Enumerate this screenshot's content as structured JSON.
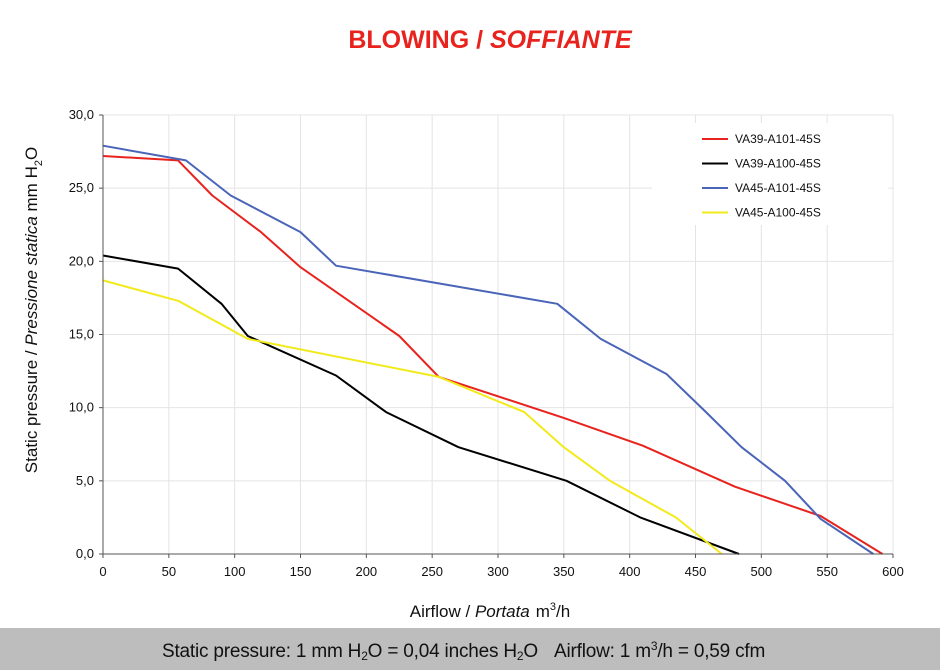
{
  "chart_data": {
    "type": "line",
    "title_main": "BLOWING / ",
    "title_italic": "SOFFIANTE",
    "title_color": "#e8231e",
    "xlabel_plain": "Airflow / ",
    "xlabel_italic": "Portata",
    "xlabel_unit": "m",
    "xlabel_unit_sup": "3",
    "xlabel_unit_tail": "/h",
    "ylabel_plain": "Static pressure / ",
    "ylabel_italic": "Pressione statica",
    "ylabel_unit": " mm  H",
    "ylabel_unit_sub": "2",
    "ylabel_unit_tail": "O",
    "xlim": [
      0,
      600
    ],
    "ylim": [
      0,
      30
    ],
    "x_ticks": [
      "0",
      "50",
      "100",
      "150",
      "200",
      "250",
      "300",
      "350",
      "400",
      "450",
      "500",
      "550",
      "600"
    ],
    "y_ticks": [
      "0,0",
      "5,0",
      "10,0",
      "15,0",
      "20,0",
      "25,0",
      "30,0"
    ],
    "grid": true,
    "legend_position": "top-right",
    "series": [
      {
        "name": "VA39-A101-45S",
        "color": "#e8231e",
        "points": [
          [
            0,
            27.2
          ],
          [
            57,
            26.9
          ],
          [
            83,
            24.5
          ],
          [
            120,
            22.0
          ],
          [
            150,
            19.6
          ],
          [
            225,
            14.9
          ],
          [
            255,
            12.1
          ],
          [
            350,
            9.3
          ],
          [
            410,
            7.4
          ],
          [
            480,
            4.6
          ],
          [
            545,
            2.6
          ],
          [
            592,
            0
          ]
        ]
      },
      {
        "name": "VA39-A100-45S",
        "color": "#000000",
        "points": [
          [
            0,
            20.4
          ],
          [
            57,
            19.5
          ],
          [
            90,
            17.1
          ],
          [
            110,
            14.9
          ],
          [
            177,
            12.2
          ],
          [
            215,
            9.7
          ],
          [
            270,
            7.3
          ],
          [
            352,
            5.0
          ],
          [
            408,
            2.5
          ],
          [
            483,
            0
          ]
        ]
      },
      {
        "name": "VA45-A101-45S",
        "color": "#4a64b8",
        "points": [
          [
            0,
            27.9
          ],
          [
            63,
            26.9
          ],
          [
            97,
            24.5
          ],
          [
            150,
            22.0
          ],
          [
            177,
            19.7
          ],
          [
            345,
            17.1
          ],
          [
            378,
            14.7
          ],
          [
            428,
            12.3
          ],
          [
            458,
            9.7
          ],
          [
            485,
            7.3
          ],
          [
            518,
            5.0
          ],
          [
            545,
            2.4
          ],
          [
            585,
            0
          ]
        ]
      },
      {
        "name": "VA45-A100-45S",
        "color": "#f2ea1a",
        "points": [
          [
            0,
            18.7
          ],
          [
            57,
            17.3
          ],
          [
            110,
            14.7
          ],
          [
            255,
            12.1
          ],
          [
            320,
            9.7
          ],
          [
            350,
            7.3
          ],
          [
            385,
            5.0
          ],
          [
            435,
            2.5
          ],
          [
            470,
            0
          ]
        ]
      }
    ]
  },
  "footer": {
    "part1": "Static pressure: 1 mm H",
    "part1_sub": "2",
    "part1_mid": "O = 0,04 inches H",
    "part1_sub2": "2",
    "part1_tail": "O",
    "part2": "Airflow: 1 m",
    "part2_sup": "3",
    "part2_tail": "/h = 0,59 cfm"
  }
}
